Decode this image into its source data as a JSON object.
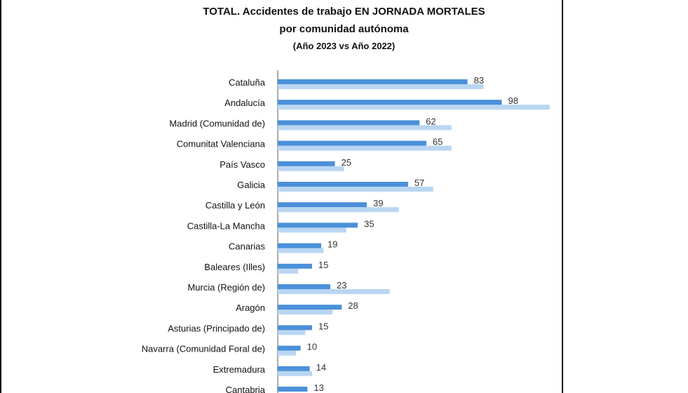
{
  "chart_data": {
    "type": "bar",
    "orientation": "horizontal",
    "title": "TOTAL. Accidentes de trabajo EN JORNADA MORTALES",
    "title_line2": "por comunidad autónoma",
    "subtitle": "(Año 2023 vs Año 2022)",
    "categories": [
      "Cataluña",
      "Andalucía",
      "Madrid (Comunidad de)",
      "Comunitat Valenciana",
      "País Vasco",
      "Galicia",
      "Castilla y León",
      "Castilla-La Mancha",
      "Canarias",
      "Baleares (Illes)",
      "Murcia (Región de)",
      "Aragón",
      "Asturias (Principado de)",
      "Navarra (Comunidad Foral de)",
      "Extremadura",
      "Cantabria"
    ],
    "series": [
      {
        "values": [
          83,
          98,
          62,
          65,
          25,
          57,
          39,
          35,
          19,
          15,
          23,
          28,
          15,
          10,
          14,
          13
        ],
        "color": "#4a90d9",
        "data_labels": true
      },
      {
        "values": [
          90,
          119,
          76,
          76,
          29,
          68,
          53,
          30,
          20,
          9,
          49,
          24,
          12,
          8,
          15,
          null
        ],
        "color": "#b9d6f2",
        "data_labels": false
      }
    ],
    "xlim": [
      0,
      120
    ],
    "grid": false,
    "legend": "none"
  }
}
